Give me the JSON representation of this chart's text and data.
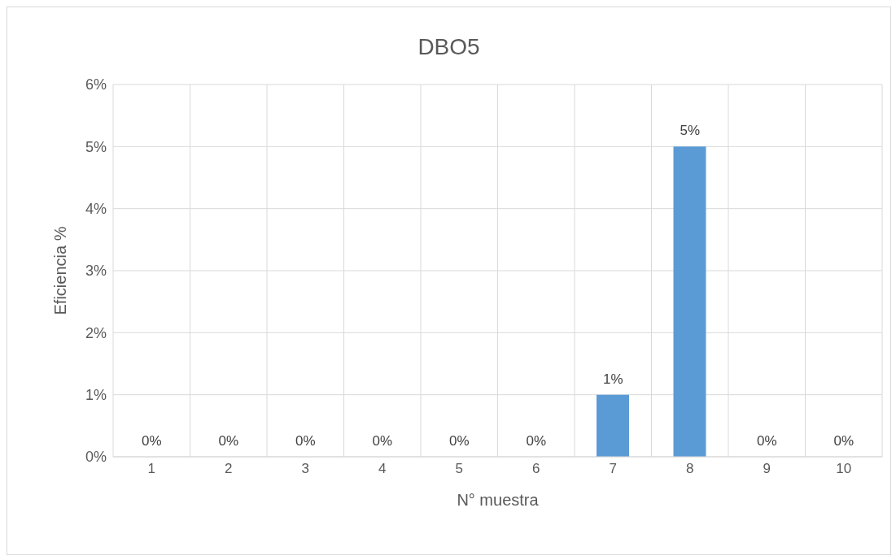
{
  "chart_data": {
    "type": "bar",
    "title": "DBO5",
    "xlabel": "N° muestra",
    "ylabel": "Eficiencia %",
    "categories": [
      "1",
      "2",
      "3",
      "4",
      "5",
      "6",
      "7",
      "8",
      "9",
      "10"
    ],
    "values": [
      0,
      0,
      0,
      0,
      0,
      0,
      1,
      5,
      0,
      0
    ],
    "value_labels": [
      "0%",
      "0%",
      "0%",
      "0%",
      "0%",
      "0%",
      "1%",
      "5%",
      "0%",
      "0%"
    ],
    "color": "#5b9bd5",
    "ylim": [
      0,
      6
    ],
    "yticks": [
      {
        "value": 0,
        "label": "0%"
      },
      {
        "value": 1,
        "label": "1%"
      },
      {
        "value": 2,
        "label": "2%"
      },
      {
        "value": 3,
        "label": "3%"
      },
      {
        "value": 4,
        "label": "4%"
      },
      {
        "value": 5,
        "label": "5%"
      },
      {
        "value": 6,
        "label": "6%"
      }
    ],
    "grid": true
  }
}
